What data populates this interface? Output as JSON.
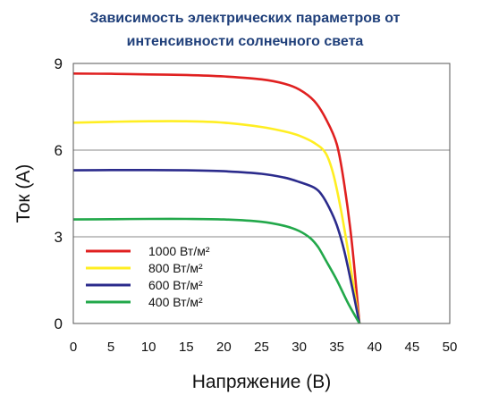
{
  "chart_data": {
    "type": "line",
    "title_lines": [
      "Зависимость электрических параметров от",
      "интенсивности солнечного света"
    ],
    "xlabel": "Напряжение (В)",
    "ylabel": "Ток (А)",
    "xlim": [
      0,
      50
    ],
    "ylim": [
      0,
      9
    ],
    "xticks": [
      0,
      5,
      10,
      15,
      20,
      25,
      30,
      35,
      40,
      45,
      50
    ],
    "yticks": [
      0,
      3,
      6,
      9
    ],
    "grid": "horizontal",
    "legend_position": "bottom-left",
    "series": [
      {
        "name": "1000 Вт/м²",
        "color": "#e02020",
        "points": [
          [
            0,
            8.65
          ],
          [
            5,
            8.64
          ],
          [
            10,
            8.62
          ],
          [
            15,
            8.6
          ],
          [
            20,
            8.55
          ],
          [
            25,
            8.45
          ],
          [
            28,
            8.3
          ],
          [
            30,
            8.1
          ],
          [
            32,
            7.7
          ],
          [
            33.5,
            7.1
          ],
          [
            35,
            6.2
          ],
          [
            36,
            4.8
          ],
          [
            37,
            2.8
          ],
          [
            38,
            0
          ]
        ]
      },
      {
        "name": "800 Вт/м²",
        "color": "#ffee22",
        "points": [
          [
            0,
            6.95
          ],
          [
            5,
            6.98
          ],
          [
            10,
            7.0
          ],
          [
            15,
            7.0
          ],
          [
            20,
            6.95
          ],
          [
            25,
            6.8
          ],
          [
            28,
            6.65
          ],
          [
            30,
            6.5
          ],
          [
            32,
            6.25
          ],
          [
            33.5,
            5.9
          ],
          [
            34.5,
            5.2
          ],
          [
            35.5,
            4.0
          ],
          [
            36.5,
            2.5
          ],
          [
            38,
            0
          ]
        ]
      },
      {
        "name": "600 Вт/м²",
        "color": "#2b2b8c",
        "points": [
          [
            0,
            5.3
          ],
          [
            5,
            5.31
          ],
          [
            10,
            5.31
          ],
          [
            15,
            5.3
          ],
          [
            20,
            5.27
          ],
          [
            25,
            5.18
          ],
          [
            28,
            5.05
          ],
          [
            30,
            4.9
          ],
          [
            32,
            4.7
          ],
          [
            33,
            4.45
          ],
          [
            34,
            4.0
          ],
          [
            35,
            3.4
          ],
          [
            36,
            2.5
          ],
          [
            37,
            1.3
          ],
          [
            38,
            0
          ]
        ]
      },
      {
        "name": "400 Вт/м²",
        "color": "#22a84a",
        "points": [
          [
            0,
            3.6
          ],
          [
            5,
            3.61
          ],
          [
            10,
            3.62
          ],
          [
            15,
            3.62
          ],
          [
            20,
            3.6
          ],
          [
            25,
            3.52
          ],
          [
            28,
            3.38
          ],
          [
            30,
            3.2
          ],
          [
            31.5,
            2.95
          ],
          [
            32.5,
            2.65
          ],
          [
            33.5,
            2.2
          ],
          [
            35,
            1.5
          ],
          [
            36.5,
            0.7
          ],
          [
            38,
            0
          ]
        ]
      }
    ]
  }
}
